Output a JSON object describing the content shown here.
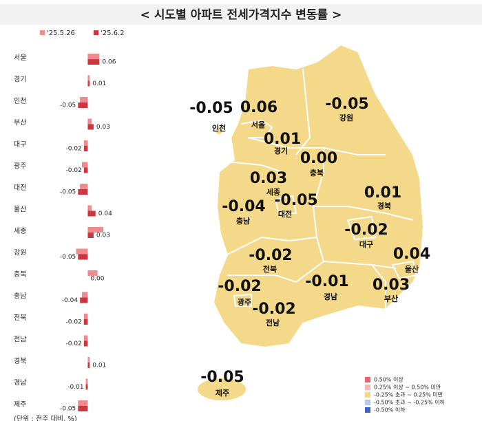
{
  "chart_data": {
    "type": "bar",
    "title": "< 시도별 아파트 전세가격지수 변동률 >",
    "note": "(단위 : 전주 대비, %)",
    "categories": [
      "서울",
      "경기",
      "인천",
      "부산",
      "대구",
      "광주",
      "대전",
      "울산",
      "세종",
      "강원",
      "충북",
      "충남",
      "전북",
      "전남",
      "경북",
      "경남",
      "제주"
    ],
    "xlim": [
      -0.38,
      0.2
    ],
    "series": [
      {
        "name": "'25.5.26",
        "color": "#f08a8f",
        "values": [
          0.06,
          0.01,
          -0.04,
          0.02,
          -0.02,
          -0.03,
          -0.04,
          0.02,
          0.08,
          -0.06,
          0.05,
          -0.03,
          -0.02,
          -0.02,
          0.01,
          -0.01,
          -0.05
        ]
      },
      {
        "name": "'25.6.2",
        "color": "#c8383e",
        "values": [
          0.06,
          0.01,
          -0.05,
          0.03,
          -0.02,
          -0.02,
          -0.05,
          0.04,
          0.03,
          -0.05,
          0,
          -0.04,
          -0.02,
          -0.02,
          0.01,
          -0.01,
          -0.05
        ],
        "value_labels": [
          "0.06",
          "0.01",
          "-0.05",
          "0.03",
          "-0.02",
          "-0.02",
          "-0.05",
          "0.04",
          "0.03",
          "-0.05",
          "0.00",
          "-0.04",
          "-0.02",
          "-0.02",
          "0.01",
          "-0.01",
          "-0.05"
        ]
      }
    ],
    "map_legend": [
      {
        "label": "0.50% 이상",
        "color": "#e8636b"
      },
      {
        "label": "0.25% 이상 ~ 0.50% 미만",
        "color": "#f4b6b9"
      },
      {
        "label": "-0.25% 초과 ~ 0.25% 미만",
        "color": "#f5d98a"
      },
      {
        "label": "-0.50% 초과 ~ -0.25% 이하",
        "color": "#b8c6ea"
      },
      {
        "label": "-0.50% 이하",
        "color": "#3c63c4"
      }
    ]
  }
}
